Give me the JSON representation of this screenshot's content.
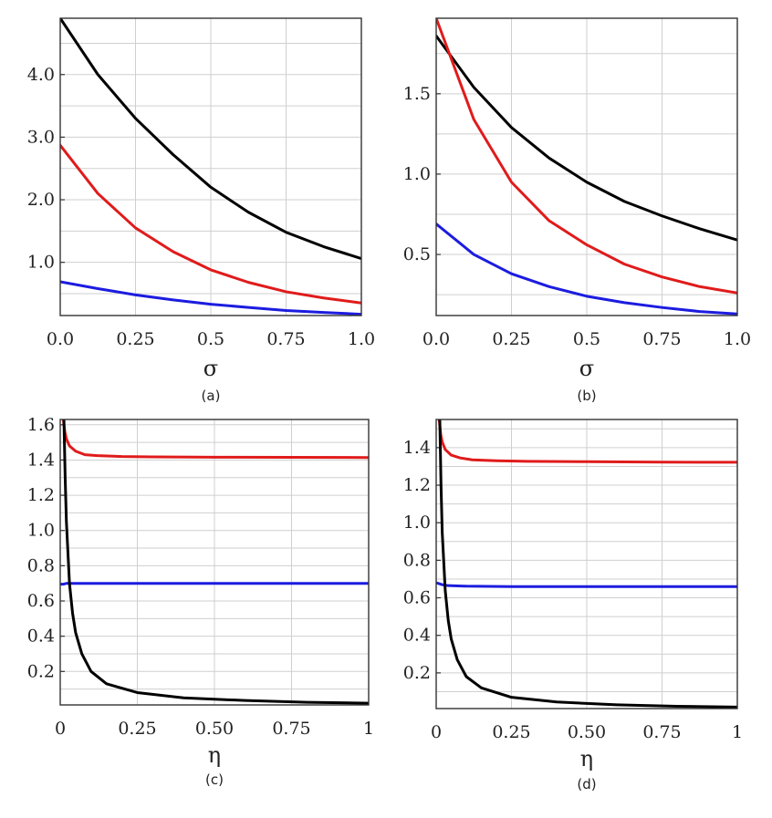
{
  "chart_data": [
    {
      "type": "line",
      "caption": "(a)",
      "xlabel": "σ",
      "ylabel": "",
      "xlim": [
        0,
        1
      ],
      "ylim": [
        0.15,
        4.9
      ],
      "x_ticks": [
        "0.0",
        "0.25",
        "0.5",
        "0.75",
        "1.0"
      ],
      "y_ticks": [
        "1.0",
        "2.0",
        "3.0",
        "4.0"
      ],
      "grid": true,
      "series": [
        {
          "color": "#000000",
          "x": [
            0,
            0.125,
            0.25,
            0.375,
            0.5,
            0.625,
            0.75,
            0.875,
            1
          ],
          "y": [
            4.9,
            4.0,
            3.3,
            2.72,
            2.2,
            1.8,
            1.48,
            1.25,
            1.06
          ]
        },
        {
          "color": "#e01b1b",
          "x": [
            0,
            0.125,
            0.25,
            0.375,
            0.5,
            0.625,
            0.75,
            0.875,
            1
          ],
          "y": [
            2.87,
            2.1,
            1.55,
            1.17,
            0.88,
            0.68,
            0.53,
            0.43,
            0.35
          ]
        },
        {
          "color": "#1c1ce0",
          "x": [
            0,
            0.125,
            0.25,
            0.375,
            0.5,
            0.625,
            0.75,
            0.875,
            1
          ],
          "y": [
            0.69,
            0.58,
            0.48,
            0.4,
            0.33,
            0.28,
            0.23,
            0.2,
            0.17
          ]
        }
      ]
    },
    {
      "type": "line",
      "caption": "(b)",
      "xlabel": "σ",
      "ylabel": "",
      "xlim": [
        0,
        1
      ],
      "ylim": [
        0.12,
        1.97
      ],
      "x_ticks": [
        "0.0",
        "0.25",
        "0.5",
        "0.75",
        "1.0"
      ],
      "y_ticks": [
        "0.5",
        "1.0",
        "1.5"
      ],
      "grid": true,
      "series": [
        {
          "color": "#000000",
          "x": [
            0,
            0.125,
            0.25,
            0.375,
            0.5,
            0.625,
            0.75,
            0.875,
            1
          ],
          "y": [
            1.86,
            1.54,
            1.29,
            1.1,
            0.95,
            0.83,
            0.74,
            0.66,
            0.59
          ]
        },
        {
          "color": "#e01b1b",
          "x": [
            0,
            0.125,
            0.25,
            0.375,
            0.5,
            0.625,
            0.75,
            0.875,
            1
          ],
          "y": [
            1.97,
            1.34,
            0.95,
            0.71,
            0.56,
            0.44,
            0.36,
            0.3,
            0.26
          ]
        },
        {
          "color": "#1c1ce0",
          "x": [
            0,
            0.125,
            0.25,
            0.375,
            0.5,
            0.625,
            0.75,
            0.875,
            1
          ],
          "y": [
            0.69,
            0.5,
            0.38,
            0.3,
            0.24,
            0.2,
            0.17,
            0.145,
            0.13
          ]
        }
      ]
    },
    {
      "type": "line",
      "caption": "(c)",
      "xlabel": "η",
      "ylabel": "",
      "xlim": [
        0,
        1
      ],
      "ylim": [
        0.01,
        1.63
      ],
      "x_ticks": [
        "0",
        "0.25",
        "0.50",
        "0.75",
        "1"
      ],
      "y_ticks": [
        "0.2",
        "0.4",
        "0.6",
        "0.8",
        "1.0",
        "1.2",
        "1.4",
        "1.6"
      ],
      "grid": true,
      "series": [
        {
          "color": "#e01b1b",
          "x": [
            0.01,
            0.015,
            0.02,
            0.03,
            0.05,
            0.08,
            0.12,
            0.2,
            0.3,
            0.5,
            0.75,
            1
          ],
          "y": [
            1.63,
            1.56,
            1.52,
            1.48,
            1.45,
            1.43,
            1.425,
            1.42,
            1.418,
            1.416,
            1.415,
            1.414
          ]
        },
        {
          "color": "#1c1ce0",
          "x": [
            0.0,
            0.01,
            0.02,
            0.04,
            0.1,
            0.25,
            0.5,
            0.75,
            1
          ],
          "y": [
            0.695,
            0.695,
            0.7,
            0.7,
            0.7,
            0.7,
            0.7,
            0.7,
            0.7
          ]
        },
        {
          "color": "#000000",
          "x": [
            0.012,
            0.016,
            0.02,
            0.03,
            0.04,
            0.05,
            0.07,
            0.1,
            0.15,
            0.25,
            0.4,
            0.6,
            0.8,
            1
          ],
          "y": [
            1.63,
            1.3,
            1.05,
            0.7,
            0.53,
            0.42,
            0.3,
            0.2,
            0.13,
            0.08,
            0.05,
            0.035,
            0.025,
            0.02
          ]
        }
      ]
    },
    {
      "type": "line",
      "caption": "(d)",
      "xlabel": "η",
      "ylabel": "",
      "xlim": [
        0,
        1
      ],
      "ylim": [
        0.01,
        1.55
      ],
      "x_ticks": [
        "0",
        "0.25",
        "0.50",
        "0.75",
        "1"
      ],
      "y_ticks": [
        "0.2",
        "0.4",
        "0.6",
        "0.8",
        "1.0",
        "1.2",
        "1.4"
      ],
      "grid": true,
      "series": [
        {
          "color": "#e01b1b",
          "x": [
            0.01,
            0.015,
            0.02,
            0.03,
            0.05,
            0.08,
            0.12,
            0.2,
            0.3,
            0.5,
            0.75,
            1
          ],
          "y": [
            1.55,
            1.47,
            1.43,
            1.39,
            1.36,
            1.345,
            1.335,
            1.33,
            1.327,
            1.325,
            1.323,
            1.322
          ]
        },
        {
          "color": "#1c1ce0",
          "x": [
            0.0,
            0.01,
            0.02,
            0.04,
            0.1,
            0.25,
            0.5,
            0.75,
            1
          ],
          "y": [
            0.68,
            0.675,
            0.67,
            0.665,
            0.662,
            0.66,
            0.66,
            0.66,
            0.66
          ]
        },
        {
          "color": "#000000",
          "x": [
            0.012,
            0.016,
            0.02,
            0.03,
            0.04,
            0.05,
            0.07,
            0.1,
            0.15,
            0.25,
            0.4,
            0.6,
            0.8,
            1
          ],
          "y": [
            1.55,
            1.2,
            0.95,
            0.64,
            0.48,
            0.38,
            0.27,
            0.18,
            0.12,
            0.07,
            0.045,
            0.03,
            0.022,
            0.018
          ]
        }
      ]
    }
  ]
}
